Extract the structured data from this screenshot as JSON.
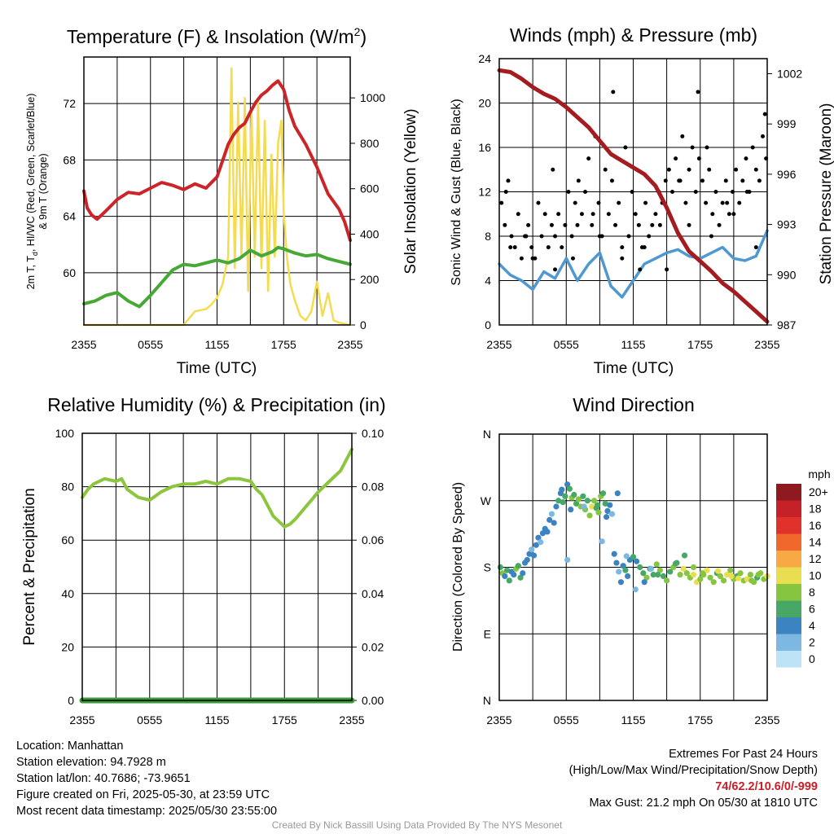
{
  "chart_data": [
    {
      "type": "line",
      "title": "Temperature (F) & Insolation (W/m",
      "title_sup": "2",
      "title_close": ")",
      "xlabel": "Time (UTC)",
      "ylabel_line1": "2m T, T",
      "ylabel_sub": "d",
      "ylabel_line1_rest": ", HI/WC (Red, Green, Scarlet/Blue)",
      "ylabel_line2": "& 9m T (Orange)",
      "ylabel_right": "Solar Insolation (Yellow)",
      "x_ticks": [
        "2355",
        "0555",
        "1155",
        "1755",
        "2355"
      ],
      "y_ticks": [
        "60",
        "64",
        "68",
        "72"
      ],
      "y_range": [
        56.3,
        75.3
      ],
      "y_right_ticks": [
        "0",
        "200",
        "400",
        "600",
        "800",
        "1000"
      ],
      "y_right_range": [
        0,
        1180
      ],
      "series": [
        {
          "color": "#cc2529",
          "x": [
            0,
            0.3,
            0.7,
            1.2,
            2,
            3,
            4,
            5,
            6,
            7,
            8,
            9,
            10,
            11,
            12,
            13,
            13.5,
            14,
            14.5,
            15,
            15.5,
            16,
            16.5,
            17,
            17.5,
            18,
            18.5,
            19,
            20,
            21,
            22,
            23,
            23.5,
            24
          ],
          "y": [
            65.8,
            64.6,
            64.1,
            63.8,
            64.4,
            65.2,
            65.7,
            65.6,
            66.0,
            66.4,
            66.2,
            65.9,
            66.3,
            66.0,
            66.8,
            69.1,
            69.8,
            70.3,
            70.6,
            71.4,
            72.1,
            72.6,
            72.9,
            73.3,
            73.6,
            73.0,
            71.5,
            70.4,
            69.1,
            67.5,
            65.6,
            64.5,
            63.6,
            62.3
          ]
        },
        {
          "color": "#46a935",
          "x": [
            0,
            1,
            2,
            3,
            4,
            5,
            6,
            7,
            8,
            9,
            10,
            11,
            12,
            13,
            14,
            15,
            16,
            17,
            17.5,
            18,
            19,
            20,
            21,
            22,
            23,
            24
          ],
          "y": [
            57.8,
            58.0,
            58.4,
            58.6,
            58.0,
            57.6,
            58.4,
            59.3,
            60.2,
            60.6,
            60.5,
            60.7,
            60.9,
            60.7,
            61.0,
            61.6,
            61.2,
            61.5,
            61.8,
            61.7,
            61.4,
            61.2,
            61.3,
            61.0,
            60.8,
            60.6
          ]
        }
      ],
      "insolation": {
        "color": "#f4dc50",
        "x": [
          0,
          9,
          9.5,
          10,
          11,
          11.5,
          12,
          12.5,
          13,
          13.3,
          13.6,
          13.9,
          14.2,
          14.5,
          14.8,
          15.1,
          15.4,
          15.7,
          16,
          16.3,
          16.6,
          16.9,
          17.2,
          17.5,
          17.8,
          18,
          18.3,
          18.6,
          19,
          19.5,
          20,
          20.5,
          21,
          21.5,
          22,
          22.5,
          23,
          24
        ],
        "y": [
          0,
          0,
          30,
          60,
          70,
          90,
          120,
          180,
          300,
          1130,
          250,
          980,
          300,
          1000,
          150,
          950,
          300,
          990,
          250,
          900,
          150,
          750,
          300,
          800,
          900,
          500,
          300,
          180,
          110,
          40,
          20,
          60,
          190,
          40,
          140,
          20,
          10,
          0
        ]
      }
    },
    {
      "type": "line",
      "title": "Winds (mph) & Pressure (mb)",
      "xlabel": "Time (UTC)",
      "ylabel": "Sonic Wind & Gust (Blue, Black)",
      "ylabel_right": "Station Pressure (Maroon)",
      "x_ticks": [
        "2355",
        "0555",
        "1155",
        "1755",
        "2355"
      ],
      "y_ticks": [
        "0",
        "4",
        "8",
        "12",
        "16",
        "20",
        "24"
      ],
      "y_range": [
        0,
        24
      ],
      "y_right_ticks": [
        "987",
        "990",
        "993",
        "996",
        "999",
        "1002"
      ],
      "y_right_range": [
        987,
        1002.9
      ],
      "series": [
        {
          "name_hint": "wind",
          "color": "#4f98d0",
          "x": [
            0,
            1,
            2,
            3,
            4,
            5,
            6,
            7,
            8,
            9,
            10,
            11,
            12,
            13,
            14,
            15,
            16,
            17,
            18,
            19,
            20,
            21,
            22,
            23,
            24
          ],
          "y": [
            5.5,
            4.5,
            4.0,
            3.2,
            4.8,
            4.2,
            6.0,
            4.0,
            5.5,
            6.5,
            3.5,
            2.5,
            4.0,
            5.5,
            6.0,
            6.5,
            6.8,
            6.2,
            6.0,
            6.5,
            7.0,
            6.0,
            5.8,
            6.2,
            8.5
          ]
        },
        {
          "name_hint": "pressure",
          "color": "#a41c20",
          "x": [
            0,
            1,
            2,
            3,
            4,
            5,
            6,
            7,
            8,
            9,
            10,
            11,
            12,
            13,
            14,
            15,
            16,
            17,
            18,
            19,
            20,
            21,
            22,
            23,
            24
          ],
          "y": [
            1002.2,
            1002.1,
            1001.7,
            1001.2,
            1000.8,
            1000.5,
            1000.0,
            999.4,
            998.8,
            998.0,
            997.2,
            996.8,
            996.4,
            996.0,
            995.3,
            994.0,
            992.5,
            991.4,
            990.8,
            990.2,
            989.5,
            989.0,
            988.4,
            987.8,
            987.2
          ]
        }
      ],
      "gusts": {
        "color": "#000000",
        "x": [
          0.2,
          0.5,
          0.8,
          1.1,
          1.4,
          1.7,
          2.0,
          2.3,
          2.6,
          2.9,
          3.2,
          3.5,
          3.8,
          4.1,
          4.4,
          4.7,
          5.0,
          5.3,
          5.6,
          5.9,
          6.2,
          6.5,
          6.8,
          7.1,
          7.4,
          7.7,
          8.0,
          8.3,
          8.6,
          8.9,
          9.2,
          9.5,
          9.8,
          10.1,
          10.4,
          10.7,
          11.0,
          11.3,
          11.6,
          11.9,
          12.2,
          12.5,
          12.8,
          13.1,
          13.4,
          13.7,
          14.0,
          14.3,
          14.6,
          14.9,
          15.2,
          15.5,
          15.8,
          16.1,
          16.4,
          16.7,
          17.0,
          17.3,
          17.6,
          17.9,
          18.2,
          18.5,
          18.8,
          19.1,
          19.4,
          19.7,
          20.0,
          20.3,
          20.6,
          20.9,
          21.2,
          21.5,
          21.8,
          22.1,
          22.4,
          22.7,
          23.0,
          23.3,
          23.6,
          23.9,
          1.0,
          3.0,
          5.0,
          7.0,
          9.0,
          11.0,
          13.0,
          15.0,
          17.0,
          19.0,
          21.0,
          23.0,
          0.6,
          2.4,
          4.8,
          6.6,
          8.4,
          10.2,
          12.6,
          14.4,
          16.2,
          18.6,
          20.4,
          22.2,
          23.8,
          17.8
        ],
        "y": [
          11,
          9,
          13,
          8,
          7,
          10,
          6,
          8,
          9,
          7,
          6,
          11,
          8,
          10,
          7,
          9,
          8,
          10,
          7,
          9,
          12,
          8,
          11,
          13,
          10,
          12,
          15,
          9,
          17,
          11,
          8,
          14,
          10,
          13,
          9,
          11,
          7,
          16,
          8,
          12,
          10,
          9,
          7,
          11,
          8,
          9,
          10,
          12,
          11,
          13,
          14,
          12,
          15,
          13,
          17,
          11,
          14,
          16,
          12,
          15,
          13,
          11,
          14,
          10,
          12,
          9,
          11,
          13,
          10,
          12,
          14,
          11,
          13,
          15,
          12,
          16,
          14,
          13,
          17,
          15,
          7,
          6,
          5,
          9,
          8,
          6,
          7,
          5,
          9,
          8,
          10,
          7,
          12,
          8,
          14,
          6,
          10,
          21,
          5,
          9,
          13,
          16,
          11,
          12,
          19,
          21
        ]
      }
    },
    {
      "type": "line",
      "title": "Relative Humidity (%) & Precipitation (in)",
      "ylabel": "Percent & Precipitation",
      "x_ticks": [
        "2355",
        "0555",
        "1155",
        "1755",
        "2355"
      ],
      "y_ticks": [
        "0",
        "20",
        "40",
        "60",
        "80",
        "100"
      ],
      "y_range": [
        0,
        100
      ],
      "y_right_ticks": [
        "0.00",
        "0.02",
        "0.04",
        "0.06",
        "0.08",
        "0.10"
      ],
      "y_right_range": [
        0,
        0.1
      ],
      "series": [
        {
          "color": "#8cc63f",
          "x": [
            0,
            0.5,
            1,
            2,
            3,
            3.5,
            4,
            5,
            6,
            7,
            8,
            9,
            10,
            11,
            12,
            13,
            14,
            15,
            15.5,
            16,
            16.5,
            17,
            17.5,
            18,
            18.5,
            19,
            20,
            21,
            22,
            23,
            24
          ],
          "y": [
            76,
            79,
            81,
            83,
            82,
            83,
            79,
            76,
            75,
            78,
            80,
            81,
            81,
            82,
            81,
            83,
            83,
            82,
            79,
            77,
            73,
            69,
            67,
            65,
            66,
            68,
            73,
            78,
            82,
            86,
            94
          ]
        },
        {
          "color": "#3a9a3a",
          "x": [
            0,
            24
          ],
          "y": [
            0,
            0
          ]
        }
      ]
    },
    {
      "type": "scatter",
      "title": "Wind Direction",
      "ylabel": "Direction (Colored By Speed)",
      "x_ticks": [
        "2355",
        "0555",
        "1155",
        "1755",
        "2355"
      ],
      "y_ticks": [
        "N",
        "E",
        "S",
        "W",
        "N"
      ],
      "y_range": [
        0,
        360
      ],
      "legend_title": "mph",
      "legend_labels": [
        "20+",
        "18",
        "16",
        "14",
        "12",
        "10",
        "8",
        "6",
        "4",
        "2",
        "0"
      ],
      "legend_colors": [
        "#8e1a1f",
        "#c62128",
        "#e0312a",
        "#f0682c",
        "#f9a846",
        "#e8de50",
        "#86c540",
        "#47a865",
        "#3b84c1",
        "#7cb8e2",
        "#bde3f6"
      ],
      "points_x": [
        0.1,
        0.3,
        0.5,
        0.7,
        0.9,
        1.1,
        1.3,
        1.5,
        1.7,
        1.9,
        2.1,
        2.3,
        2.5,
        2.7,
        2.9,
        3.1,
        3.3,
        3.5,
        3.7,
        3.9,
        4.1,
        4.3,
        4.5,
        4.7,
        4.9,
        5.1,
        5.3,
        5.5,
        5.7,
        5.9,
        6.1,
        6.3,
        6.5,
        6.7,
        6.9,
        7.1,
        7.3,
        7.5,
        7.7,
        7.9,
        8.1,
        8.3,
        8.5,
        8.7,
        8.9,
        9.1,
        9.3,
        9.5,
        9.7,
        9.9,
        10.1,
        10.3,
        10.5,
        10.7,
        10.9,
        11.1,
        11.3,
        11.5,
        11.7,
        12.0,
        12.3,
        12.6,
        12.9,
        13.2,
        13.5,
        13.8,
        14.1,
        14.4,
        14.7,
        15.0,
        15.3,
        15.6,
        15.9,
        16.2,
        16.5,
        16.8,
        17.1,
        17.4,
        17.7,
        18.0,
        18.3,
        18.6,
        18.9,
        19.2,
        19.5,
        19.8,
        20.1,
        20.4,
        20.7,
        21.0,
        21.3,
        21.6,
        21.9,
        22.2,
        22.5,
        22.8,
        23.1,
        23.4,
        23.7,
        24.0,
        5.6,
        6.4,
        7.6,
        8.8,
        9.6,
        10.6,
        12.2,
        13.0,
        14.2,
        15.8,
        17.4,
        19.6,
        21.4,
        23.2,
        6.1,
        9.2,
        11.4,
        13.6,
        16.6,
        18.2,
        20.8,
        22.6
      ],
      "points_y": [
        180,
        172,
        168,
        176,
        162,
        174,
        170,
        178,
        182,
        166,
        172,
        186,
        190,
        198,
        204,
        196,
        210,
        220,
        214,
        226,
        232,
        228,
        244,
        252,
        240,
        262,
        270,
        280,
        268,
        276,
        292,
        286,
        274,
        278,
        266,
        272,
        262,
        276,
        258,
        270,
        250,
        262,
        270,
        260,
        254,
        276,
        280,
        266,
        256,
        264,
        252,
        198,
        186,
        174,
        160,
        182,
        176,
        168,
        190,
        194,
        188,
        180,
        172,
        166,
        178,
        170,
        184,
        176,
        168,
        162,
        174,
        180,
        186,
        170,
        178,
        172,
        166,
        170,
        160,
        164,
        170,
        176,
        166,
        160,
        172,
        168,
        162,
        170,
        176,
        164,
        168,
        172,
        162,
        164,
        170,
        160,
        166,
        172,
        164,
        168,
        285,
        258,
        262,
        264,
        248,
        280,
        150,
        160,
        170,
        185,
        180,
        175,
        165,
        170,
        190,
        215,
        195,
        178,
        196,
        172,
        168,
        162
      ],
      "points_speed": [
        6,
        7,
        4,
        5,
        6,
        3,
        4,
        7,
        6,
        5,
        4,
        3,
        4,
        3,
        2,
        4,
        3,
        4,
        2,
        3,
        4,
        3,
        4,
        2,
        3,
        4,
        5,
        4,
        6,
        5,
        4,
        6,
        7,
        5,
        6,
        7,
        8,
        6,
        7,
        6,
        8,
        10,
        7,
        6,
        8,
        7,
        5,
        6,
        4,
        3,
        2,
        3,
        4,
        2,
        3,
        4,
        5,
        3,
        4,
        5,
        4,
        6,
        5,
        7,
        6,
        5,
        7,
        8,
        6,
        7,
        5,
        8,
        6,
        7,
        9,
        7,
        8,
        10,
        9,
        8,
        7,
        9,
        8,
        7,
        6,
        8,
        7,
        9,
        8,
        7,
        6,
        8,
        7,
        9,
        8,
        7,
        6,
        8,
        7,
        9,
        3,
        4,
        2,
        5,
        4,
        3,
        2,
        3,
        5,
        6,
        8,
        10,
        9,
        7,
        1,
        2,
        1,
        2,
        6,
        8,
        9,
        7
      ]
    }
  ],
  "info_left": [
    "Location: Manhattan",
    "Station elevation: 94.7928 m",
    "Station lat/lon: 40.7686; -73.9651",
    "Figure created on Fri, 2025-05-30, at 23:59 UTC",
    "Most recent data timestamp: 2025/05/30 23:55:00"
  ],
  "info_right": {
    "line1": "Extremes For Past 24 Hours",
    "line2": "(High/Low/Max Wind/Precipitation/Snow Depth)",
    "extremes": "74/62.2/10.6/0/-999",
    "gust": "Max Gust: 21.2 mph On 05/30 at 1810 UTC"
  },
  "credit": "Created By Nick Bassill Using Data Provided By The NYS Mesonet"
}
